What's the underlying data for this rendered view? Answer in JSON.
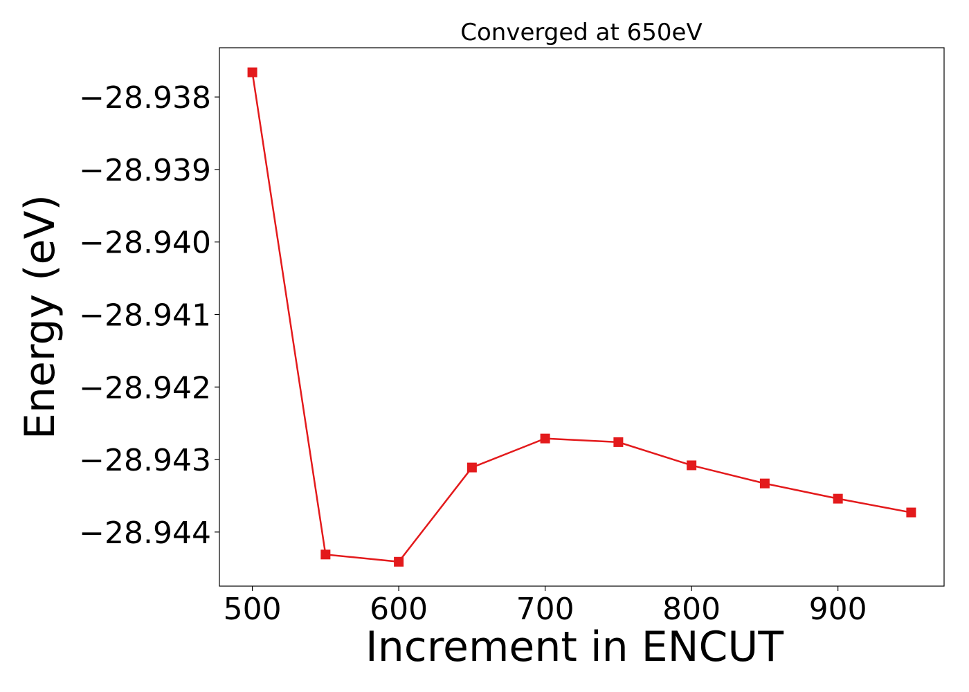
{
  "chart_data": {
    "type": "line",
    "title": "Converged at 650eV",
    "xlabel": "Increment in ENCUT",
    "ylabel": "Energy (eV)",
    "x": [
      500,
      550,
      600,
      650,
      700,
      750,
      800,
      850,
      900,
      950
    ],
    "series": [
      {
        "values": [
          -28.93766,
          -28.94431,
          -28.94441,
          -28.94311,
          -28.94271,
          -28.94276,
          -28.94308,
          -28.94333,
          -28.94354,
          -28.94373
        ],
        "color": "#e31a1c",
        "marker": "square"
      }
    ],
    "xticks": [
      500,
      600,
      700,
      800,
      900
    ],
    "xtick_labels": [
      "500",
      "600",
      "700",
      "800",
      "900"
    ],
    "yticks": [
      -28.938,
      -28.939,
      -28.94,
      -28.941,
      -28.942,
      -28.943,
      -28.944
    ],
    "ytick_labels": [
      "−28.938",
      "−28.939",
      "−28.940",
      "−28.941",
      "−28.942",
      "−28.943",
      "−28.944"
    ],
    "xlim": [
      477.5,
      972.5
    ],
    "ylim": [
      -28.944746,
      -28.937321
    ],
    "grid": false
  }
}
